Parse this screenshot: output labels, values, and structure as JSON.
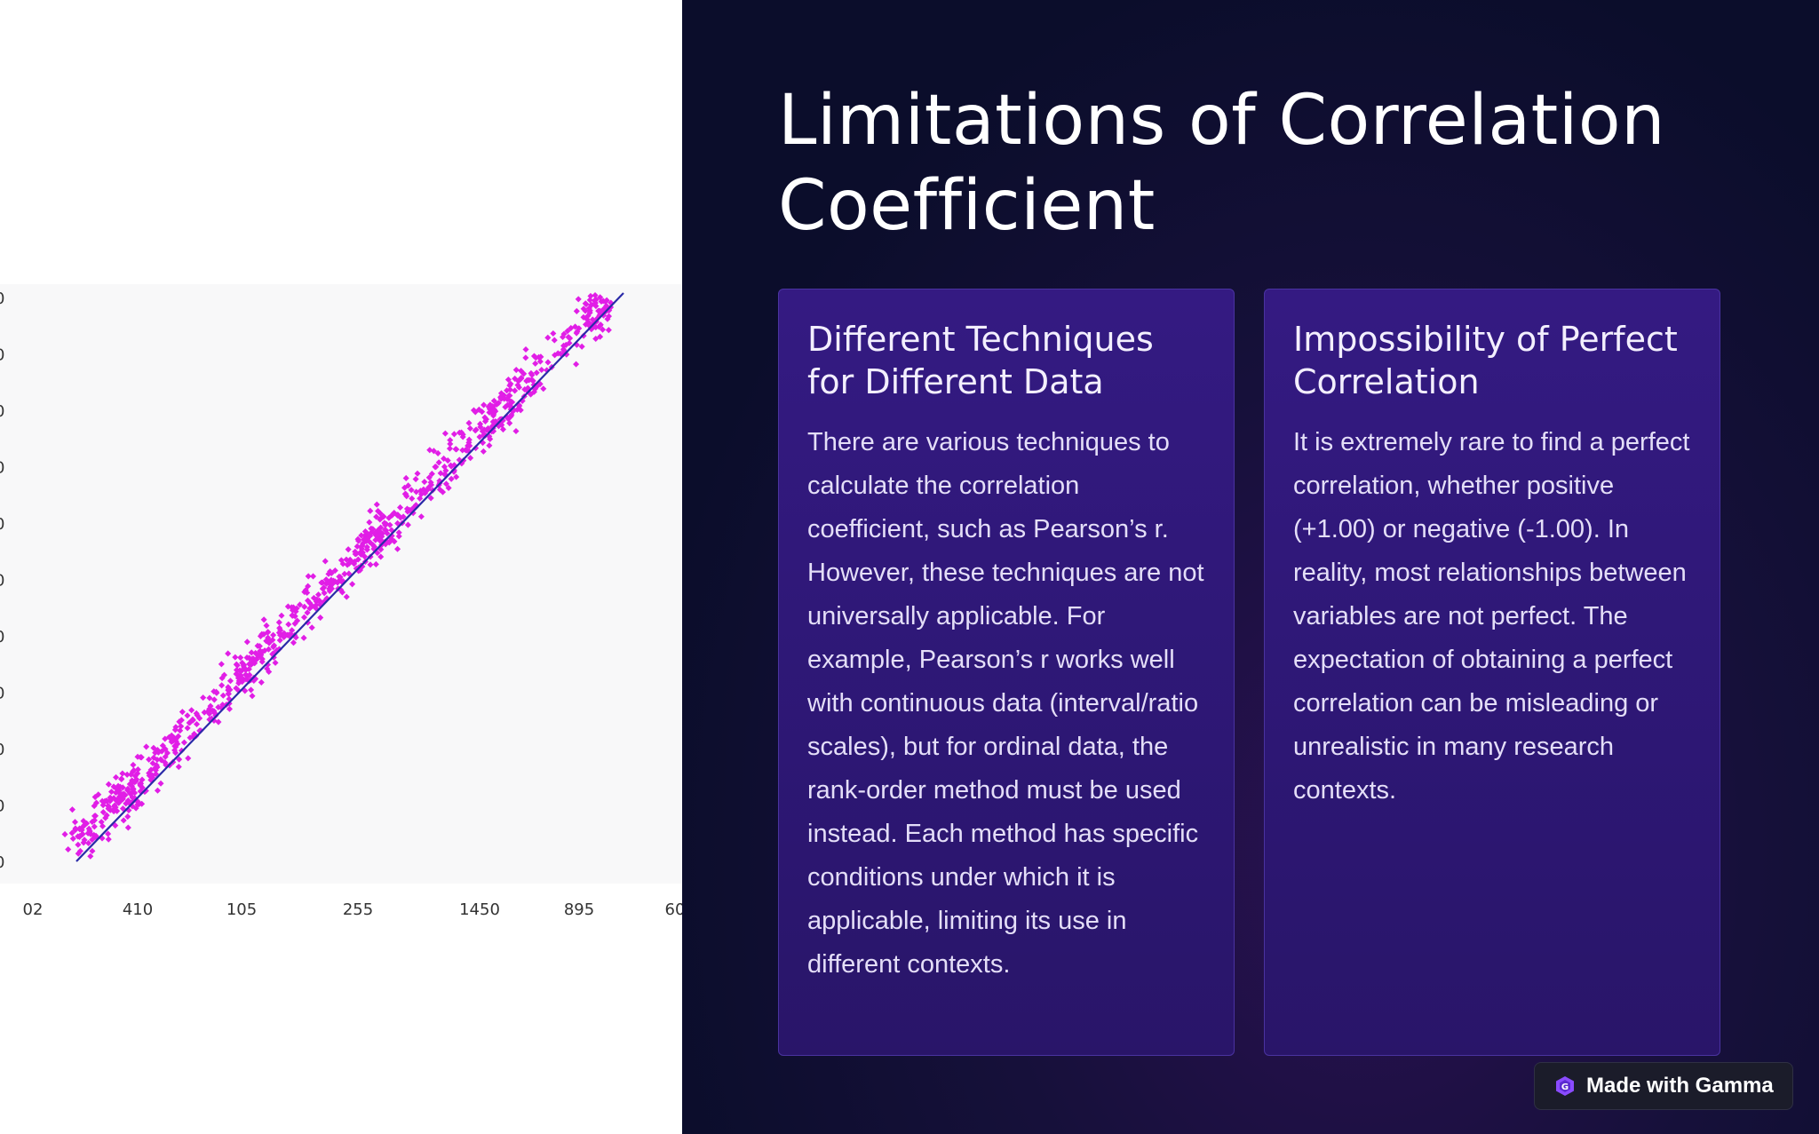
{
  "slide": {
    "title": "Limitations of Correlation Coefficient"
  },
  "cards": [
    {
      "title": "Different Techniques for Different Data",
      "body": "There are various techniques to calculate the correlation coefficient, such as Pearson’s r. However, these techniques are not universally applicable. For example, Pearson’s r works well with continuous data (interval/ratio scales), but for ordinal data, the rank-order method must be used instead. Each method has specific conditions under which it is applicable, limiting its use in different contexts."
    },
    {
      "title": "Impossibility of Perfect Correlation",
      "body": "It is extremely rare to find a perfect correlation, whether positive (+1.00) or negative (-1.00). In reality, most relationships between variables are not perfect. The expectation of obtaining a perfect correlation can be misleading or unrealistic in many research contexts."
    }
  ],
  "badge": {
    "label": "Made with Gamma",
    "icon": "gamma-logo-icon"
  },
  "colors": {
    "points": "#e11ee6",
    "trend_line": "#2a2aa8",
    "panel_bg": "#0b0d2b",
    "card_bg": "#341a82"
  },
  "chart_data": {
    "type": "scatter",
    "title": "",
    "xlabel": "",
    "ylabel": "",
    "x_tick_labels": [
      "02",
      "410",
      "105",
      "255",
      "1450",
      "895",
      "60"
    ],
    "y_tick_labels": [
      "0",
      "0",
      "0",
      "0",
      "0",
      "0",
      "0",
      "0",
      "0",
      "0",
      "0"
    ],
    "grid": false,
    "legend": "none",
    "series": [
      {
        "kind": "points",
        "count": 900,
        "trend": "strong positive linear",
        "x_range": [
          0.05,
          0.95
        ],
        "y_range": [
          0.05,
          0.98
        ]
      },
      {
        "kind": "trend_line",
        "x": [
          0.04,
          0.94
        ],
        "y": [
          0.0,
          1.0
        ]
      }
    ]
  }
}
